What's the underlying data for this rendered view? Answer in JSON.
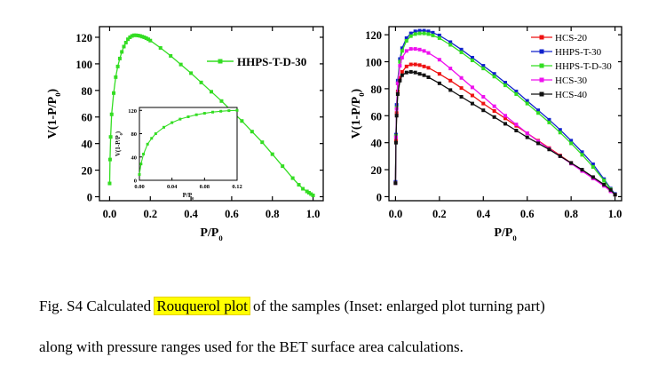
{
  "chart_data": [
    {
      "type": "line",
      "id": "left",
      "xlabel": "P/P0",
      "ylabel": "V(1-P/P0)",
      "xlim": [
        -0.05,
        1.05
      ],
      "ylim": [
        -3,
        128
      ],
      "xticks": [
        0.0,
        0.2,
        0.4,
        0.6,
        0.8,
        1.0
      ],
      "xtick_labels": [
        "0.0",
        "0.2",
        "0.4",
        "0.6",
        "0.8",
        "1.0"
      ],
      "yticks": [
        0,
        20,
        40,
        60,
        80,
        100,
        120
      ],
      "ytick_labels": [
        "0",
        "20",
        "40",
        "60",
        "80",
        "100",
        "120"
      ],
      "legend": "top-right",
      "series": [
        {
          "name": "HHPS-T-D-30",
          "color": "#33dd22",
          "marker": "square",
          "x": [
            0.0,
            0.002,
            0.005,
            0.01,
            0.02,
            0.03,
            0.04,
            0.05,
            0.06,
            0.07,
            0.08,
            0.09,
            0.1,
            0.11,
            0.12,
            0.13,
            0.14,
            0.15,
            0.16,
            0.17,
            0.18,
            0.19,
            0.2,
            0.25,
            0.3,
            0.35,
            0.4,
            0.45,
            0.5,
            0.55,
            0.6,
            0.65,
            0.7,
            0.75,
            0.8,
            0.85,
            0.9,
            0.93,
            0.95,
            0.97,
            0.98,
            0.99,
            1.0
          ],
          "y": [
            10,
            28,
            45,
            62,
            78,
            90,
            98,
            104,
            109,
            113,
            116,
            118.5,
            120,
            121,
            121.5,
            121.5,
            121.3,
            121,
            120.5,
            120,
            119.3,
            118.5,
            117.5,
            112,
            106,
            99.5,
            93,
            86,
            79,
            72,
            64.5,
            57,
            49,
            41,
            32,
            23,
            14,
            9,
            6,
            4,
            3,
            2,
            1
          ]
        }
      ],
      "inset": {
        "xlim": [
          0,
          0.12
        ],
        "ylim": [
          0,
          125
        ],
        "xticks": [
          0.0,
          0.04,
          0.08,
          0.12
        ],
        "xtick_labels": [
          "0.00",
          "0.04",
          "0.08",
          "0.12"
        ],
        "yticks": [
          0,
          40,
          80,
          120
        ],
        "ytick_labels": [
          "0",
          "40",
          "80",
          "120"
        ],
        "xlabel": "P/P0",
        "ylabel": "V(1-P/P0)",
        "x": [
          0.0,
          0.002,
          0.005,
          0.01,
          0.015,
          0.02,
          0.03,
          0.04,
          0.05,
          0.06,
          0.07,
          0.08,
          0.09,
          0.1,
          0.11,
          0.12
        ],
        "y": [
          10,
          28,
          45,
          62,
          72,
          80,
          91,
          99,
          105,
          109,
          112.5,
          115,
          117,
          118.5,
          119.5,
          120
        ]
      }
    },
    {
      "type": "line",
      "id": "right",
      "xlabel": "P/P0",
      "ylabel": "V(1-P/P0)",
      "xlim": [
        -0.03,
        1.03
      ],
      "ylim": [
        -3,
        126
      ],
      "xticks": [
        0.0,
        0.2,
        0.4,
        0.6,
        0.8,
        1.0
      ],
      "xtick_labels": [
        "0.0",
        "0.2",
        "0.4",
        "0.6",
        "0.8",
        "1.0"
      ],
      "yticks": [
        0,
        20,
        40,
        60,
        80,
        100,
        120
      ],
      "ytick_labels": [
        "0",
        "20",
        "40",
        "60",
        "80",
        "100",
        "120"
      ],
      "legend": "top-right",
      "series": [
        {
          "name": "HCS-20",
          "color": "#ee1111",
          "marker": "square",
          "x": [
            0.0,
            0.002,
            0.005,
            0.01,
            0.02,
            0.03,
            0.05,
            0.07,
            0.09,
            0.11,
            0.13,
            0.15,
            0.2,
            0.25,
            0.3,
            0.35,
            0.4,
            0.45,
            0.5,
            0.55,
            0.6,
            0.65,
            0.7,
            0.75,
            0.8,
            0.85,
            0.9,
            0.95,
            0.98,
            1.0
          ],
          "y": [
            10,
            42,
            62,
            78,
            88,
            92.5,
            96.5,
            98,
            98,
            97.5,
            96.5,
            95.5,
            91,
            86,
            80.5,
            75,
            69,
            63.5,
            58,
            52.5,
            47,
            41.5,
            36,
            30.5,
            25,
            19.5,
            14,
            8.5,
            4.5,
            1.5
          ]
        },
        {
          "name": "HHPS-T-30",
          "color": "#1122cc",
          "marker": "square",
          "x": [
            0.0,
            0.002,
            0.005,
            0.01,
            0.02,
            0.03,
            0.05,
            0.07,
            0.09,
            0.11,
            0.13,
            0.15,
            0.17,
            0.2,
            0.25,
            0.3,
            0.35,
            0.4,
            0.45,
            0.5,
            0.55,
            0.6,
            0.65,
            0.7,
            0.75,
            0.8,
            0.85,
            0.9,
            0.95,
            0.98,
            1.0
          ],
          "y": [
            11,
            46,
            68,
            86,
            102,
            110,
            117.5,
            121,
            122.5,
            123,
            123,
            122.5,
            121.5,
            119.5,
            114.5,
            109,
            103,
            97,
            91,
            84.5,
            78,
            71,
            64,
            57,
            49.5,
            41.5,
            33,
            24,
            13,
            6,
            2
          ]
        },
        {
          "name": "HHPS-T-D-30",
          "color": "#33dd22",
          "marker": "square",
          "x": [
            0.0,
            0.002,
            0.005,
            0.01,
            0.02,
            0.03,
            0.05,
            0.07,
            0.09,
            0.11,
            0.13,
            0.15,
            0.17,
            0.2,
            0.25,
            0.3,
            0.35,
            0.4,
            0.45,
            0.5,
            0.55,
            0.6,
            0.65,
            0.7,
            0.75,
            0.8,
            0.85,
            0.9,
            0.95,
            0.98,
            1.0
          ],
          "y": [
            10,
            45,
            66,
            84,
            100,
            108,
            115.5,
            119,
            120.5,
            121,
            121,
            120.5,
            119.5,
            117.5,
            112.5,
            107,
            101,
            95,
            89,
            82.5,
            76,
            69,
            62,
            55,
            47.5,
            39.5,
            31,
            22,
            12,
            5.5,
            1.5
          ]
        },
        {
          "name": "HCS-30",
          "color": "#ee11ee",
          "marker": "square",
          "x": [
            0.0,
            0.002,
            0.005,
            0.01,
            0.02,
            0.03,
            0.05,
            0.07,
            0.09,
            0.11,
            0.13,
            0.15,
            0.2,
            0.25,
            0.3,
            0.35,
            0.4,
            0.45,
            0.5,
            0.55,
            0.6,
            0.65,
            0.7,
            0.75,
            0.8,
            0.85,
            0.9,
            0.95,
            0.98,
            1.0
          ],
          "y": [
            10,
            44,
            65,
            84,
            97,
            103,
            108,
            109.5,
            109.5,
            109,
            108,
            106.5,
            101.5,
            95,
            88,
            81,
            74,
            67,
            60,
            53.5,
            47,
            41,
            35.5,
            30,
            24.5,
            19,
            13.5,
            8,
            4,
            1.5
          ]
        },
        {
          "name": "HCS-40",
          "color": "#111111",
          "marker": "square",
          "x": [
            0.0,
            0.002,
            0.005,
            0.01,
            0.02,
            0.03,
            0.05,
            0.07,
            0.09,
            0.11,
            0.13,
            0.15,
            0.2,
            0.25,
            0.3,
            0.35,
            0.4,
            0.45,
            0.5,
            0.55,
            0.6,
            0.65,
            0.7,
            0.75,
            0.8,
            0.85,
            0.9,
            0.95,
            0.98,
            1.0
          ],
          "y": [
            10,
            40,
            60,
            76,
            86,
            90,
            92,
            92.5,
            92,
            91,
            90,
            88.5,
            84,
            79,
            74,
            69,
            64,
            59,
            54,
            49,
            44,
            39.5,
            35,
            30,
            25,
            20,
            14.5,
            9,
            5,
            1.5
          ]
        }
      ]
    }
  ],
  "caption": {
    "line1_before": "Fig. S4 Calculated ",
    "line1_highlight": "Rouquerol plot",
    "line1_after": " of the samples (Inset: enlarged plot turning part)",
    "line2": "along with pressure ranges used for the BET surface area calculations."
  }
}
